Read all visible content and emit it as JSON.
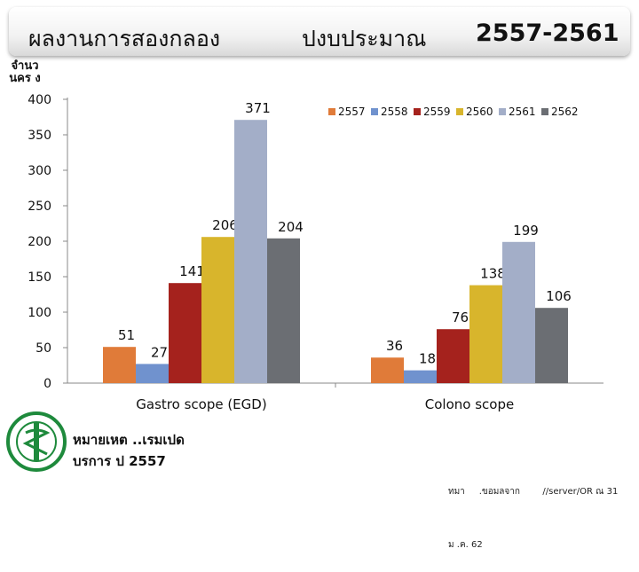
{
  "slide": {
    "title_part1": "ผลงานการสองกลอง",
    "title_part2": "ปงบประมาณ",
    "title_part3": "2557-2561",
    "ylabel": "จำนว นคร ง",
    "footnote_line1": "หมายเหต ..เรมเปด",
    "footnote_line2": "บรการ ป 2557",
    "source_line1": "ทมา     .ขอมลจาก        //server/OR ณ 31",
    "source_line2": "ม .ค. 62"
  },
  "chart_data": {
    "type": "bar",
    "categories": [
      "Gastro scope (EGD)",
      "Colono scope"
    ],
    "series": [
      {
        "name": "2557",
        "color": "#E07B39",
        "values": [
          51,
          36
        ]
      },
      {
        "name": "2558",
        "color": "#7092CE",
        "values": [
          27,
          18
        ]
      },
      {
        "name": "2559",
        "color": "#A5221D",
        "values": [
          141,
          76
        ]
      },
      {
        "name": "2560",
        "color": "#D8B52C",
        "values": [
          206,
          138
        ]
      },
      {
        "name": "2561",
        "color": "#A3AEC8",
        "values": [
          371,
          199
        ]
      },
      {
        "name": "2562",
        "color": "#6B6E73",
        "values": [
          204,
          106
        ]
      }
    ],
    "yticks": [
      0,
      50,
      100,
      150,
      200,
      250,
      300,
      350,
      400
    ],
    "ylim": [
      0,
      400
    ],
    "ylabel": "จำนว นคร ง",
    "grid": false,
    "legend_position": "top-right",
    "data_labels": true
  }
}
